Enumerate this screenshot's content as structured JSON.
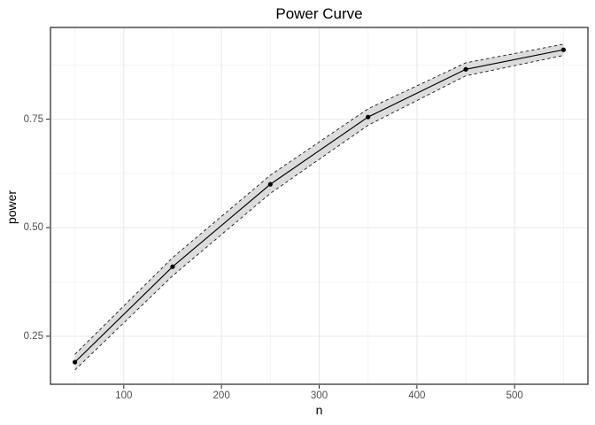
{
  "chart_data": {
    "type": "line",
    "title": "Power Curve",
    "xlabel": "n",
    "ylabel": "power",
    "x": [
      50,
      150,
      250,
      350,
      450,
      550
    ],
    "series": [
      {
        "name": "power",
        "values": [
          0.19,
          0.41,
          0.6,
          0.755,
          0.865,
          0.91
        ]
      },
      {
        "name": "ribbon_lower",
        "values": [
          0.172,
          0.389,
          0.579,
          0.736,
          0.85,
          0.897
        ]
      },
      {
        "name": "ribbon_upper",
        "values": [
          0.208,
          0.431,
          0.621,
          0.774,
          0.88,
          0.923
        ]
      }
    ],
    "x_ticks": [
      100,
      200,
      300,
      400,
      500
    ],
    "x_tick_labels": [
      "100",
      "200",
      "300",
      "400",
      "500"
    ],
    "x_minor_ticks": [
      50,
      150,
      250,
      350,
      450,
      550
    ],
    "y_ticks": [
      0.25,
      0.5,
      0.75
    ],
    "y_tick_labels": [
      "0.25",
      "0.50",
      "0.75"
    ],
    "y_minor_ticks": [
      0.375,
      0.625,
      0.875
    ],
    "xlim": [
      25,
      575
    ],
    "ylim": [
      0.139,
      0.9615
    ],
    "grid": true,
    "legend": "none",
    "marker": "point",
    "ribbon_edge_style": "dashed"
  },
  "colors": {
    "background": "#ffffff",
    "panel_background": "#ffffff",
    "panel_border": "#333333",
    "grid_major": "#e9e9e9",
    "grid_minor": "#f1f1f1",
    "ribbon_fill": "#dcdcdc",
    "ribbon_edge": "#1a1a1a",
    "line": "#000000",
    "point": "#000000",
    "tick_mark": "#333333",
    "tick_text": "#4d4d4d",
    "title_text": "#000000"
  }
}
